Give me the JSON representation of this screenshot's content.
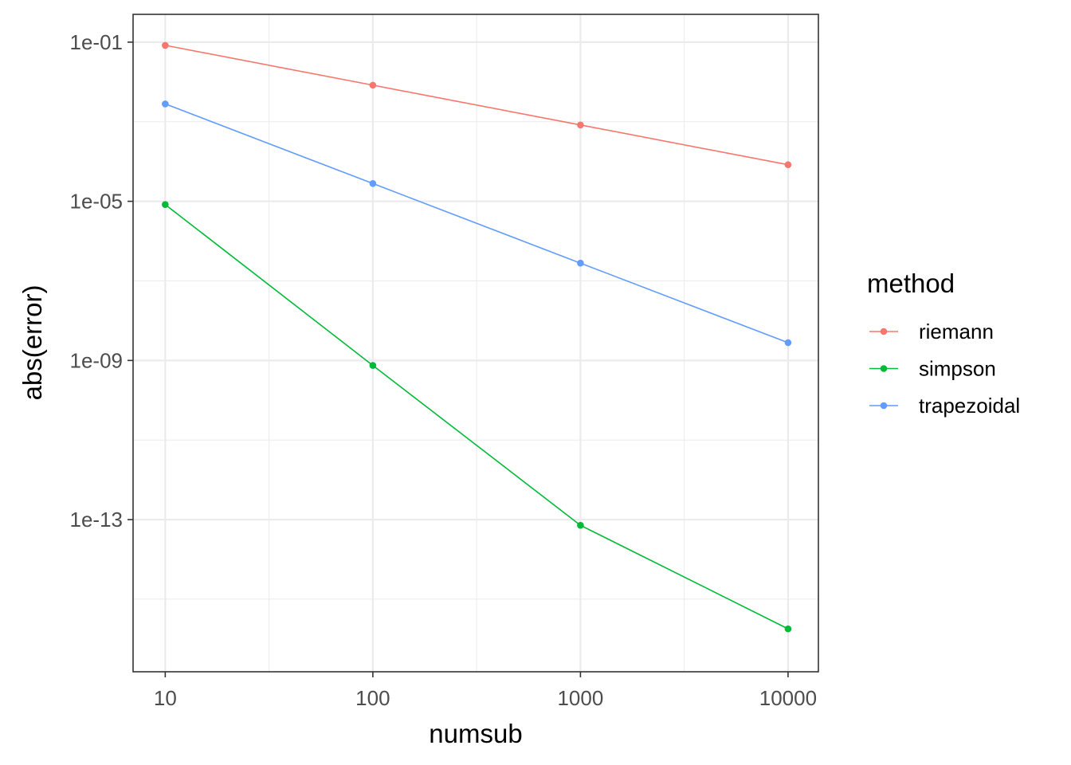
{
  "chart_data": {
    "type": "line",
    "xlabel": "numsub",
    "ylabel": "abs(error)",
    "x_scale": "log10",
    "y_scale": "log10",
    "x": [
      10,
      100,
      1000,
      10000
    ],
    "x_ticks": [
      10,
      100,
      1000,
      10000
    ],
    "x_tick_labels": [
      "10",
      "100",
      "1000",
      "10000"
    ],
    "y_ticks": [
      0.1,
      1e-05,
      1e-09,
      1e-13
    ],
    "y_tick_labels": [
      "1e-01",
      "1e-05",
      "1e-09",
      "1e-13"
    ],
    "xlim": [
      7,
      14000
    ],
    "ylim": [
      1.5e-17,
      0.5
    ],
    "grid": true,
    "legend": {
      "title": "method",
      "placement": "right"
    },
    "series": [
      {
        "name": "riemann",
        "color": "#F8766D",
        "values": [
          0.083,
          0.0083,
          0.00083,
          8.3e-05
        ]
      },
      {
        "name": "simpson",
        "color": "#00BA38",
        "values": [
          8.3e-06,
          7.5e-10,
          7.2e-14,
          1.8e-16
        ]
      },
      {
        "name": "trapezoidal",
        "color": "#619CFF",
        "values": [
          0.0028,
          2.8e-05,
          2.8e-07,
          2.8e-09
        ]
      }
    ]
  }
}
